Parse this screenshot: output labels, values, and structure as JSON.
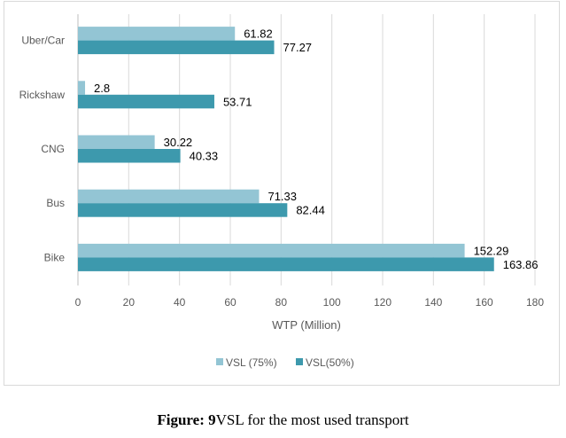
{
  "chart_data": {
    "type": "bar",
    "orientation": "horizontal",
    "categories": [
      "Uber/Car",
      "Rickshaw",
      "CNG",
      "Bus",
      "Bike"
    ],
    "series": [
      {
        "name": "VSL (75%)",
        "values": [
          61.82,
          2.8,
          30.22,
          71.33,
          152.29
        ],
        "color": "#93c5d4"
      },
      {
        "name": "VSL(50%)",
        "values": [
          77.27,
          53.71,
          40.33,
          82.44,
          163.86
        ],
        "color": "#3d99ad"
      }
    ],
    "data_labels": [
      [
        "61.82",
        "2.8",
        "30.22",
        "71.33",
        "152.29"
      ],
      [
        "77.27",
        "53.71",
        "40.33",
        "82.44",
        "163.86"
      ]
    ],
    "xlabel": "WTP (Million)",
    "ylabel": "",
    "xlim": [
      0,
      180
    ],
    "xticks": [
      "0",
      "20",
      "40",
      "60",
      "80",
      "100",
      "120",
      "140",
      "160",
      "180"
    ],
    "grid": "vertical",
    "legend": "bottom"
  },
  "caption": {
    "prefix": "Figure:",
    "number": " 9",
    "text": "VSL for the most used transport"
  }
}
